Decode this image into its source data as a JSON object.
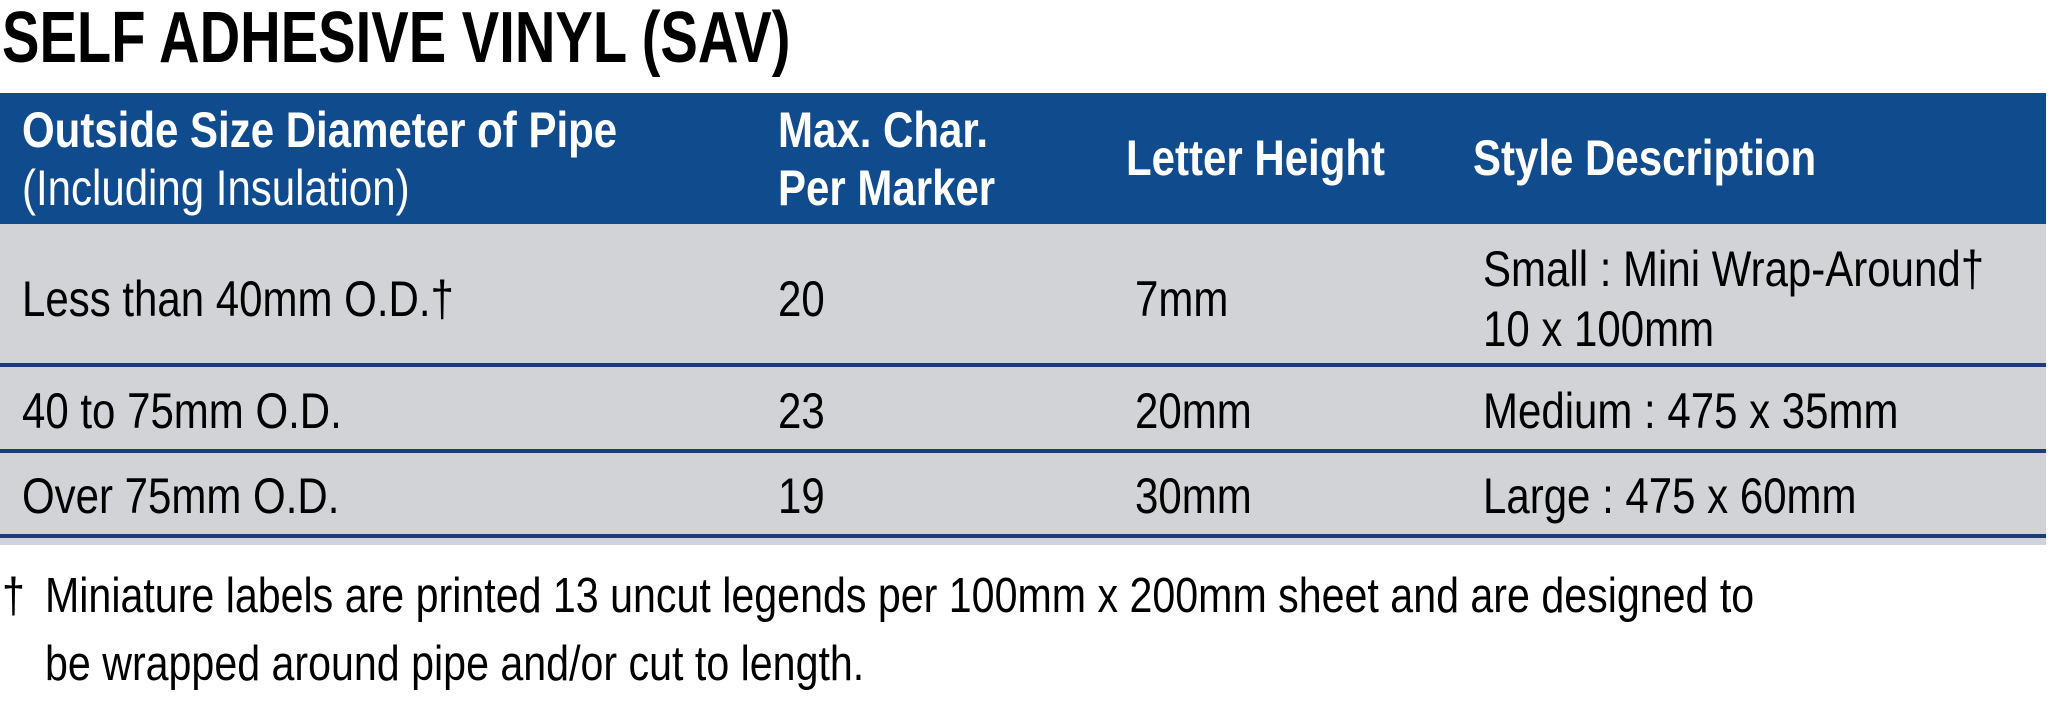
{
  "title": "SELF ADHESIVE VINYL (SAV)",
  "colors": {
    "header_bg": "#104b8e",
    "row_bg": "#d2d3d6",
    "separator": "#1d3b79"
  },
  "table": {
    "headers": [
      {
        "line1": "Outside Size Diameter of Pipe",
        "line2": "(Including Insulation)"
      },
      {
        "line1": "Max. Char.",
        "line2": "Per Marker"
      },
      {
        "line1": "Letter Height"
      },
      {
        "line1": "Style Description"
      }
    ],
    "rows": [
      {
        "size": "Less than 40mm O.D.†",
        "max_char": "20",
        "letter_height": "7mm",
        "style_line1": "Small : Mini Wrap-Around†",
        "style_line2": "10 x 100mm"
      },
      {
        "size": "40 to 75mm O.D.",
        "max_char": "23",
        "letter_height": "20mm",
        "style_line1": "Medium : 475 x 35mm"
      },
      {
        "size": "Over 75mm O.D.",
        "max_char": "19",
        "letter_height": "30mm",
        "style_line1": "Large : 475 x 60mm"
      }
    ]
  },
  "footnote": {
    "mark": "†",
    "line1": "Miniature labels are printed 13 uncut legends per 100mm x 200mm sheet and are designed to",
    "line2": "be wrapped around pipe and/or cut to length."
  }
}
